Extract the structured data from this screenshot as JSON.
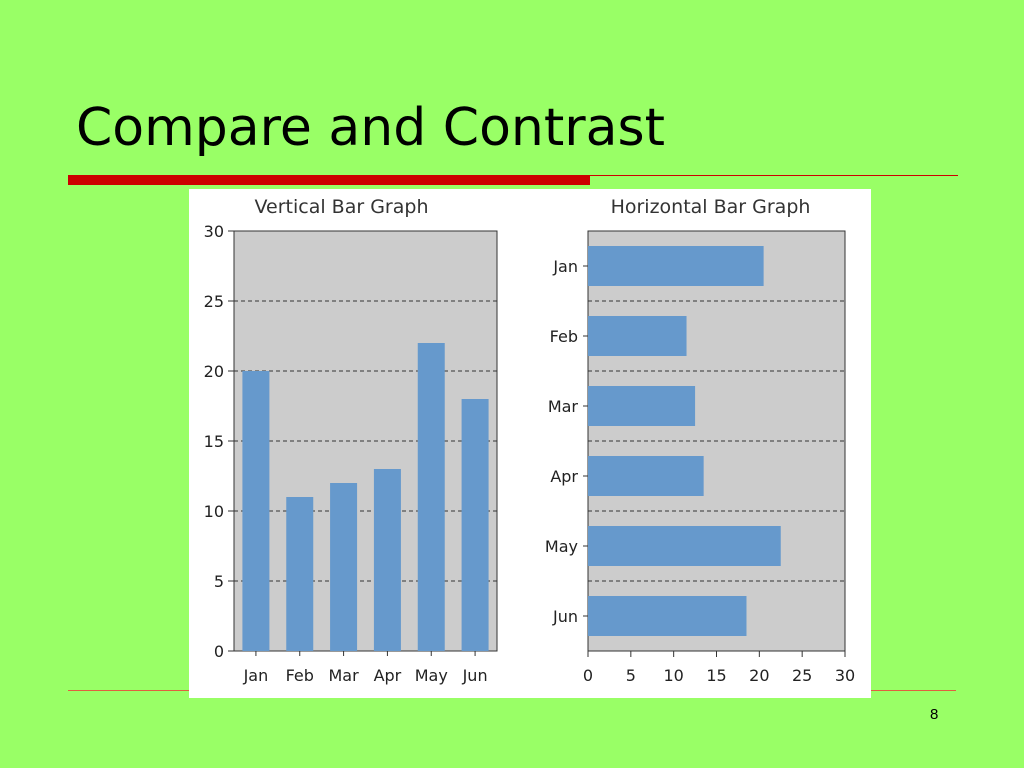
{
  "slide": {
    "title": "Compare and Contrast",
    "page_number": "8"
  },
  "colors": {
    "background": "#99ff66",
    "accent_bar": "#cc0000",
    "plot_background": "#cccccc",
    "bar_fill": "#6699cc"
  },
  "chart_data": [
    {
      "type": "bar",
      "orientation": "vertical",
      "title": "Vertical Bar Graph",
      "categories": [
        "Jan",
        "Feb",
        "Mar",
        "Apr",
        "May",
        "Jun"
      ],
      "values": [
        20,
        11,
        12,
        13,
        22,
        18
      ],
      "xlabel": "",
      "ylabel": "",
      "ylim": [
        0,
        30
      ],
      "ticks": [
        "0",
        "5",
        "10",
        "15",
        "20",
        "25",
        "30"
      ],
      "grid": "dashed horizontal"
    },
    {
      "type": "bar",
      "orientation": "horizontal",
      "title": "Horizontal Bar Graph",
      "categories": [
        "Jan",
        "Feb",
        "Mar",
        "Apr",
        "May",
        "Jun"
      ],
      "values": [
        20.5,
        11.5,
        12.5,
        13.5,
        22.5,
        18.5
      ],
      "xlabel": "",
      "ylabel": "",
      "xlim": [
        0,
        30
      ],
      "ticks": [
        "0",
        "5",
        "10",
        "15",
        "20",
        "25",
        "30"
      ],
      "grid": "dashed horizontal"
    }
  ]
}
